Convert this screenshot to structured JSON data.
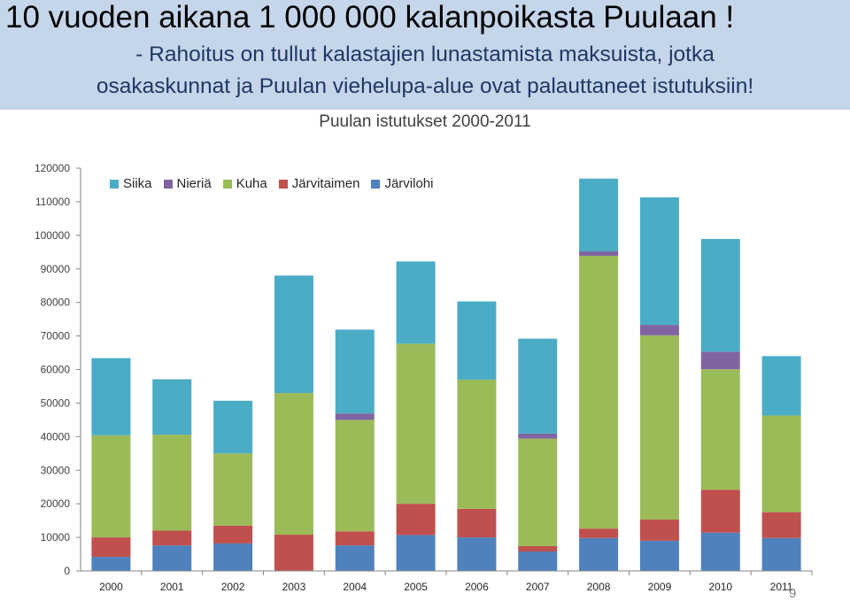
{
  "header": {
    "title": "10 vuoden aikana 1 000 000 kalanpoikasta Puulaan !",
    "subtitle_line1": "- Rahoitus on tullut kalastajien lunastamista maksuista, jotka",
    "subtitle_line2": "osakaskunnat ja Puulan viehelupa-alue ovat palauttaneet istutuksiin!"
  },
  "page_number": "9",
  "colors": {
    "Järvilohi": "#4f81bd",
    "Järvitaimen": "#c0504d",
    "Kuha": "#9bbb59",
    "Nieriä": "#8064a2",
    "Siika": "#4bacc6"
  },
  "chart_data": {
    "type": "bar",
    "stacked": true,
    "title": "Puulan istutukset 2000-2011",
    "xlabel": "",
    "ylabel": "",
    "ylim": [
      0,
      120000
    ],
    "yticks": [
      0,
      10000,
      20000,
      30000,
      40000,
      50000,
      60000,
      70000,
      80000,
      90000,
      100000,
      110000,
      120000
    ],
    "grid": false,
    "legend_position": "top-left",
    "legend_order": [
      "Siika",
      "Nieriä",
      "Kuha",
      "Järvitaimen",
      "Järvilohi"
    ],
    "categories": [
      "2000",
      "2001",
      "2002",
      "2003",
      "2004",
      "2005",
      "2006",
      "2007",
      "2008",
      "2009",
      "2010",
      "2011"
    ],
    "series": [
      {
        "name": "Järvilohi",
        "values": [
          4200,
          7600,
          8200,
          0,
          7600,
          10700,
          10000,
          5800,
          9800,
          9000,
          11400,
          9800
        ]
      },
      {
        "name": "Järvitaimen",
        "values": [
          5800,
          4400,
          5300,
          10800,
          4200,
          9300,
          8500,
          1600,
          2800,
          6300,
          12800,
          7700
        ]
      },
      {
        "name": "Kuha",
        "values": [
          30400,
          28600,
          21500,
          42200,
          33200,
          47700,
          38500,
          32000,
          81300,
          54900,
          35900,
          28800
        ]
      },
      {
        "name": "Nieriä",
        "values": [
          0,
          0,
          0,
          0,
          1900,
          0,
          0,
          1500,
          1300,
          3100,
          5200,
          0
        ]
      },
      {
        "name": "Siika",
        "values": [
          23000,
          16500,
          15700,
          35000,
          25000,
          24500,
          23300,
          28300,
          21700,
          38000,
          33600,
          17700
        ]
      }
    ]
  }
}
